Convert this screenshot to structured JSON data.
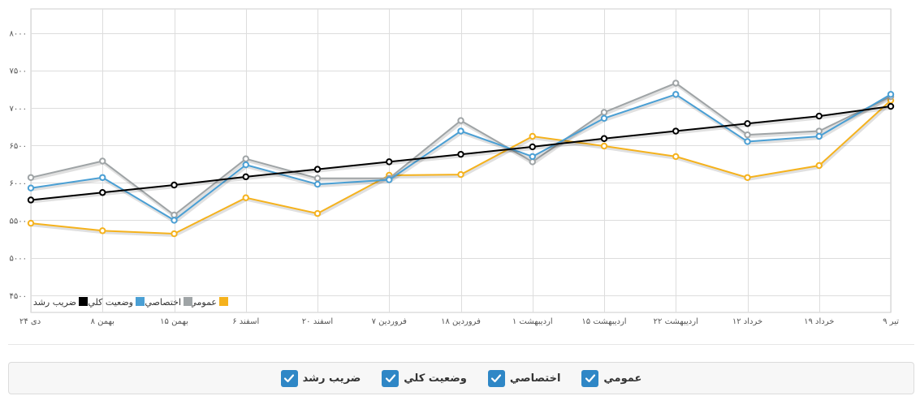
{
  "chart_data": {
    "type": "line",
    "categories": [
      "۲۴ دی",
      "۸ بهمن",
      "۱۵ بهمن",
      "۶ اسفند",
      "۲۰ اسفند",
      "۷ فروردین",
      "۱۸ فروردین",
      "۱ اردیبهشت",
      "۱۵ اردیبهشت",
      "۲۲ اردیبهشت",
      "۱۲ خرداد",
      "۱۹ خرداد",
      "۹ تیر"
    ],
    "y_ticks": [
      4500,
      5000,
      5500,
      6000,
      6500,
      7000,
      7500,
      8000
    ],
    "y_tick_labels": [
      "۴۵۰۰",
      "۵۰۰۰",
      "۵۵۰۰",
      "۶۰۰۰",
      "۶۵۰۰",
      "۷۰۰۰",
      "۷۵۰۰",
      "۸۰۰۰"
    ],
    "ylim": [
      4270,
      8320
    ],
    "grid": true,
    "legend_position": "bottom-left",
    "series": [
      {
        "name": "عمومي",
        "color": "#f5b21d",
        "values": [
          5460,
          5360,
          5320,
          5800,
          5590,
          6100,
          6110,
          6620,
          6490,
          6350,
          6070,
          6230,
          7100
        ]
      },
      {
        "name": "اختصاصي",
        "color": "#9fa4a6",
        "values": [
          6070,
          6290,
          5570,
          6320,
          6060,
          6060,
          6830,
          6280,
          6940,
          7330,
          6640,
          6690,
          7150
        ]
      },
      {
        "name": "وضعيت كلي",
        "color": "#4a9fd4",
        "values": [
          5930,
          6070,
          5500,
          6240,
          5980,
          6040,
          6690,
          6350,
          6860,
          7180,
          6550,
          6620,
          7180
        ]
      },
      {
        "name": "ضريب رشد",
        "color": "#000000",
        "values": [
          5770,
          5870,
          5970,
          6080,
          6180,
          6280,
          6380,
          6480,
          6590,
          6690,
          6790,
          6890,
          7020
        ]
      }
    ]
  },
  "legend_labels": {
    "growth": "ضريب رشد",
    "overall": "وضعيت كلي",
    "private": "اختصاصي",
    "public": "عمومي"
  },
  "toggles": [
    {
      "label": "عمومي",
      "checked": true
    },
    {
      "label": "اختصاصي",
      "checked": true
    },
    {
      "label": "وضعيت كلي",
      "checked": true
    },
    {
      "label": "ضريب رشد",
      "checked": true
    }
  ]
}
